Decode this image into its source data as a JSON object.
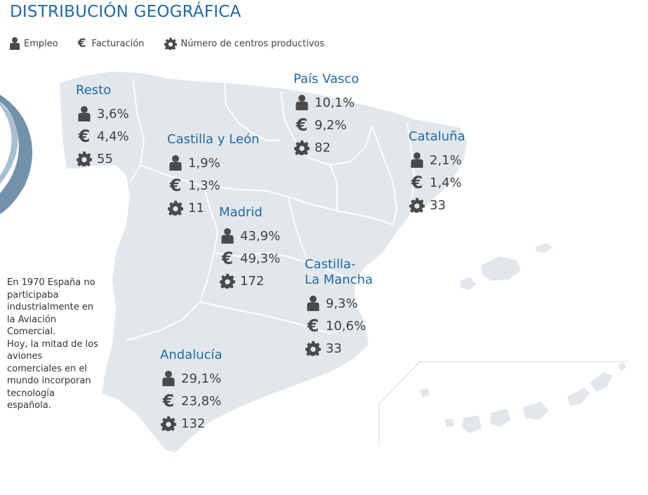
{
  "title": "DISTRIBUCIÓN GEOGRÁFICA",
  "legend": {
    "employment": "Empleo",
    "revenue": "Facturación",
    "centers": "Número de centros productivos"
  },
  "regions": {
    "resto": {
      "name": "Resto",
      "employment": "3,6%",
      "revenue": "4,4%",
      "centers": "55"
    },
    "pais_vasco": {
      "name": "País Vasco",
      "employment": "10,1%",
      "revenue": "9,2%",
      "centers": "82"
    },
    "castilla_leon": {
      "name": "Castilla y León",
      "employment": "1,9%",
      "revenue": "1,3%",
      "centers": "11"
    },
    "cataluna": {
      "name": "Cataluña",
      "employment": "2,1%",
      "revenue": "1,4%",
      "centers": "33"
    },
    "madrid": {
      "name": "Madrid",
      "employment": "43,9%",
      "revenue": "49,3%",
      "centers": "172"
    },
    "castilla_la_mancha": {
      "name_line1": "Castilla-",
      "name_line2": "La Mancha",
      "employment": "9,3%",
      "revenue": "10,6%",
      "centers": "33"
    },
    "andalucia": {
      "name": "Andalucía",
      "employment": "29,1%",
      "revenue": "23,8%",
      "centers": "132"
    }
  },
  "note": [
    "En 1970 España no",
    "participaba",
    "industrialmente en",
    "la Aviación",
    "Comercial.",
    "Hoy, la mitad de los",
    "aviones",
    "comerciales en el",
    "mundo incorporan",
    "tecnología",
    "española."
  ],
  "icons": {
    "employment": "person-icon",
    "revenue": "euro-icon",
    "centers": "gear-icon"
  },
  "colors": {
    "title": "#1f6aa3",
    "map_fill": "#e2e7ec",
    "map_border": "#ffffff",
    "icon": "#4a4a4a",
    "arc": "#6e8fa8"
  }
}
